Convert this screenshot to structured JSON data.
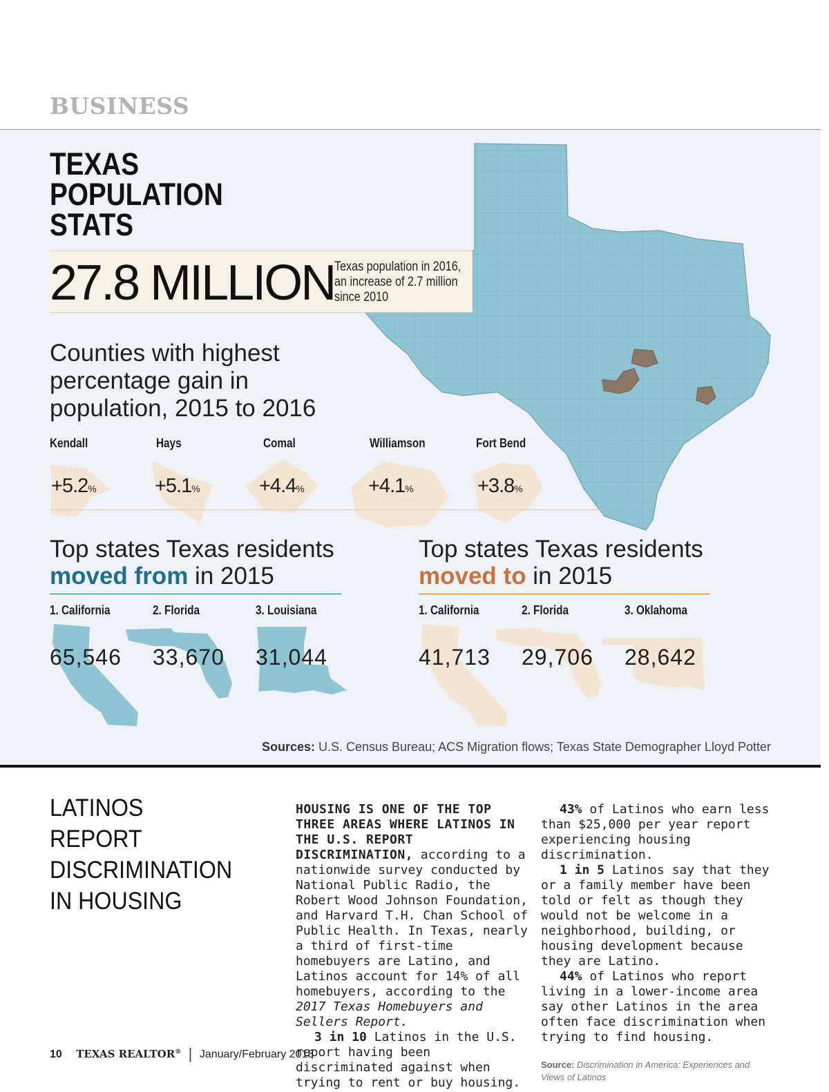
{
  "header": {
    "section": "BUSINESS"
  },
  "infographic": {
    "title": "TEXAS\nPOPULATION\nSTATS",
    "population": {
      "value": "27.8 MILLION",
      "description": "Texas population in 2016,\nan increase of 2.7 million\nsince 2010"
    },
    "counties_heading": "Counties with highest\npercentage gain in\npopulation, 2015 to 2016",
    "counties": [
      {
        "name": "Kendall",
        "gain": "+5.2",
        "unit": "%"
      },
      {
        "name": "Hays",
        "gain": "+5.1",
        "unit": "%"
      },
      {
        "name": "Comal",
        "gain": "+4.4",
        "unit": "%"
      },
      {
        "name": "Williamson",
        "gain": "+4.1",
        "unit": "%"
      },
      {
        "name": "Fort Bend",
        "gain": "+3.8",
        "unit": "%"
      }
    ],
    "moved_from": {
      "prefix": "Top states Texas residents",
      "highlight": "moved from",
      "suffix": " in 2015",
      "states": [
        {
          "name": "1. California",
          "count": "65,546"
        },
        {
          "name": "2. Florida",
          "count": "33,670"
        },
        {
          "name": "3. Louisiana",
          "count": "31,044"
        }
      ]
    },
    "moved_to": {
      "prefix": "Top states Texas residents",
      "highlight": "moved to",
      "suffix": " in 2015",
      "states": [
        {
          "name": "1. California",
          "count": "41,713"
        },
        {
          "name": "2. Florida",
          "count": "29,706"
        },
        {
          "name": "3. Oklahoma",
          "count": "28,642"
        }
      ]
    },
    "sources_label": "Sources:",
    "sources_text": "U.S. Census Bureau; ACS Migration flows; Texas State Demographer Lloyd Potter",
    "colors": {
      "map_blue": "#8fc4d3",
      "county_brown": "#8c7766",
      "beige": "#f4e4d2",
      "from_teal": "#1f6f8b",
      "to_orange": "#c8733f"
    }
  },
  "article": {
    "title": "LATINOS\nREPORT\nDISCRIMINATION\nIN HOUSING",
    "col1": {
      "lead": "HOUSING IS ONE OF THE TOP THREE AREAS WHERE LATINOS IN THE U.S. REPORT DISCRIMINATION,",
      "p1_a": " according to a nationwide survey conducted by National Public Radio, the Robert Wood Johnson Foundation, and Harvard T.H. Chan School of Public Health. In Texas, nearly a third of first-time homebuyers are Latino, and Latinos account for 14% of all homebuyers, according to the ",
      "p1_italic": "2017 Texas Homebuyers and Sellers Report.",
      "p2_bold": "3 in 10",
      "p2_text": " Latinos in the U.S. report having been discriminated against when trying to rent or buy housing."
    },
    "col2": {
      "p1_bold": "43%",
      "p1_text": " of Latinos who earn less than $25,000 per year report experiencing housing discrimination.",
      "p2_bold": "1 in 5",
      "p2_text": " Latinos say that they or a family member have been told or felt as though they would not be welcome in a neighborhood, building, or housing development because they are Latino.",
      "p3_bold": "44%",
      "p3_text": " of Latinos who report living in a lower-income area say other Latinos in the area often face discrimination when trying to find housing.",
      "source_label": "Source:",
      "source_text": "Discrimination in America: Experiences and Views of Latinos"
    }
  },
  "footer": {
    "page": "10",
    "magazine": "TEXAS REALTOR",
    "registered": "®",
    "issue": "January/February 2018"
  }
}
